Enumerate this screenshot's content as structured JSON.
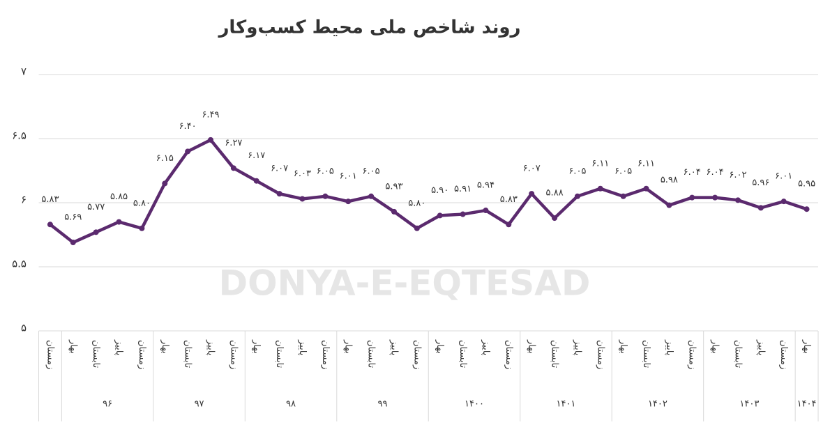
{
  "chart_data": {
    "type": "line",
    "title": "روند شاخص ملی محیط کسب‌وکار",
    "watermark": "DONYA-E-EQTESAD",
    "groups": [
      {
        "label": null,
        "categories": [
          "زمستان"
        ]
      },
      {
        "label": "۹۶",
        "categories": [
          "بهار",
          "تابستان",
          "پاییز",
          "زمستان"
        ]
      },
      {
        "label": "۹۷",
        "categories": [
          "بهار",
          "تابستان",
          "پاییز",
          "زمستان"
        ]
      },
      {
        "label": "۹۸",
        "categories": [
          "بهار",
          "تابستان",
          "پاییز",
          "زمستان"
        ]
      },
      {
        "label": "۹۹",
        "categories": [
          "بهار",
          "تابستان",
          "پاییز",
          "زمستان"
        ]
      },
      {
        "label": "۱۴۰۰",
        "categories": [
          "بهار",
          "تابستان",
          "پاییز",
          "زمستان"
        ]
      },
      {
        "label": "۱۴۰۱",
        "categories": [
          "بهار",
          "تابستان",
          "پاییز",
          "زمستان"
        ]
      },
      {
        "label": "۱۴۰۲",
        "categories": [
          "بهار",
          "تابستان",
          "پاییز",
          "زمستان"
        ]
      },
      {
        "label": "۱۴۰۳",
        "categories": [
          "بهار",
          "تابستان",
          "پاییز",
          "زمستان"
        ]
      },
      {
        "label": "۱۴۰۴",
        "categories": [
          "بهار"
        ]
      }
    ],
    "values": [
      5.83,
      5.69,
      5.77,
      5.85,
      5.8,
      6.15,
      6.4,
      6.49,
      6.27,
      6.17,
      6.07,
      6.03,
      6.05,
      6.01,
      6.05,
      5.93,
      5.8,
      5.9,
      5.91,
      5.94,
      5.83,
      6.07,
      5.88,
      6.05,
      6.11,
      6.05,
      6.11,
      5.98,
      6.04,
      6.04,
      6.02,
      5.96,
      6.01,
      5.95
    ],
    "value_labels": [
      "۵.۸۳",
      "۵.۶۹",
      "۵.۷۷",
      "۵.۸۵",
      "۵.۸۰",
      "۶.۱۵",
      "۶.۴۰",
      "۶.۴۹",
      "۶.۲۷",
      "۶.۱۷",
      "۶.۰۷",
      "۶.۰۳",
      "۶.۰۵",
      "۶.۰۱",
      "۶.۰۵",
      "۵.۹۳",
      "۵.۸۰",
      "۵.۹۰",
      "۵.۹۱",
      "۵.۹۴",
      "۵.۸۳",
      "۶.۰۷",
      "۵.۸۸",
      "۶.۰۵",
      "۶.۱۱",
      "۶.۰۵",
      "۶.۱۱",
      "۵.۹۸",
      "۶.۰۴",
      "۶.۰۴",
      "۶.۰۲",
      "۵.۹۶",
      "۶.۰۱",
      "۵.۹۵"
    ],
    "color": "#5b2a6e",
    "ylim": [
      5,
      7
    ],
    "yticks": [
      {
        "value": 5,
        "label": "۵"
      },
      {
        "value": 5.5,
        "label": "۵.۵"
      },
      {
        "value": 6,
        "label": "۶"
      },
      {
        "value": 6.5,
        "label": "۶.۵"
      },
      {
        "value": 7,
        "label": "۷"
      }
    ],
    "grid": true
  }
}
